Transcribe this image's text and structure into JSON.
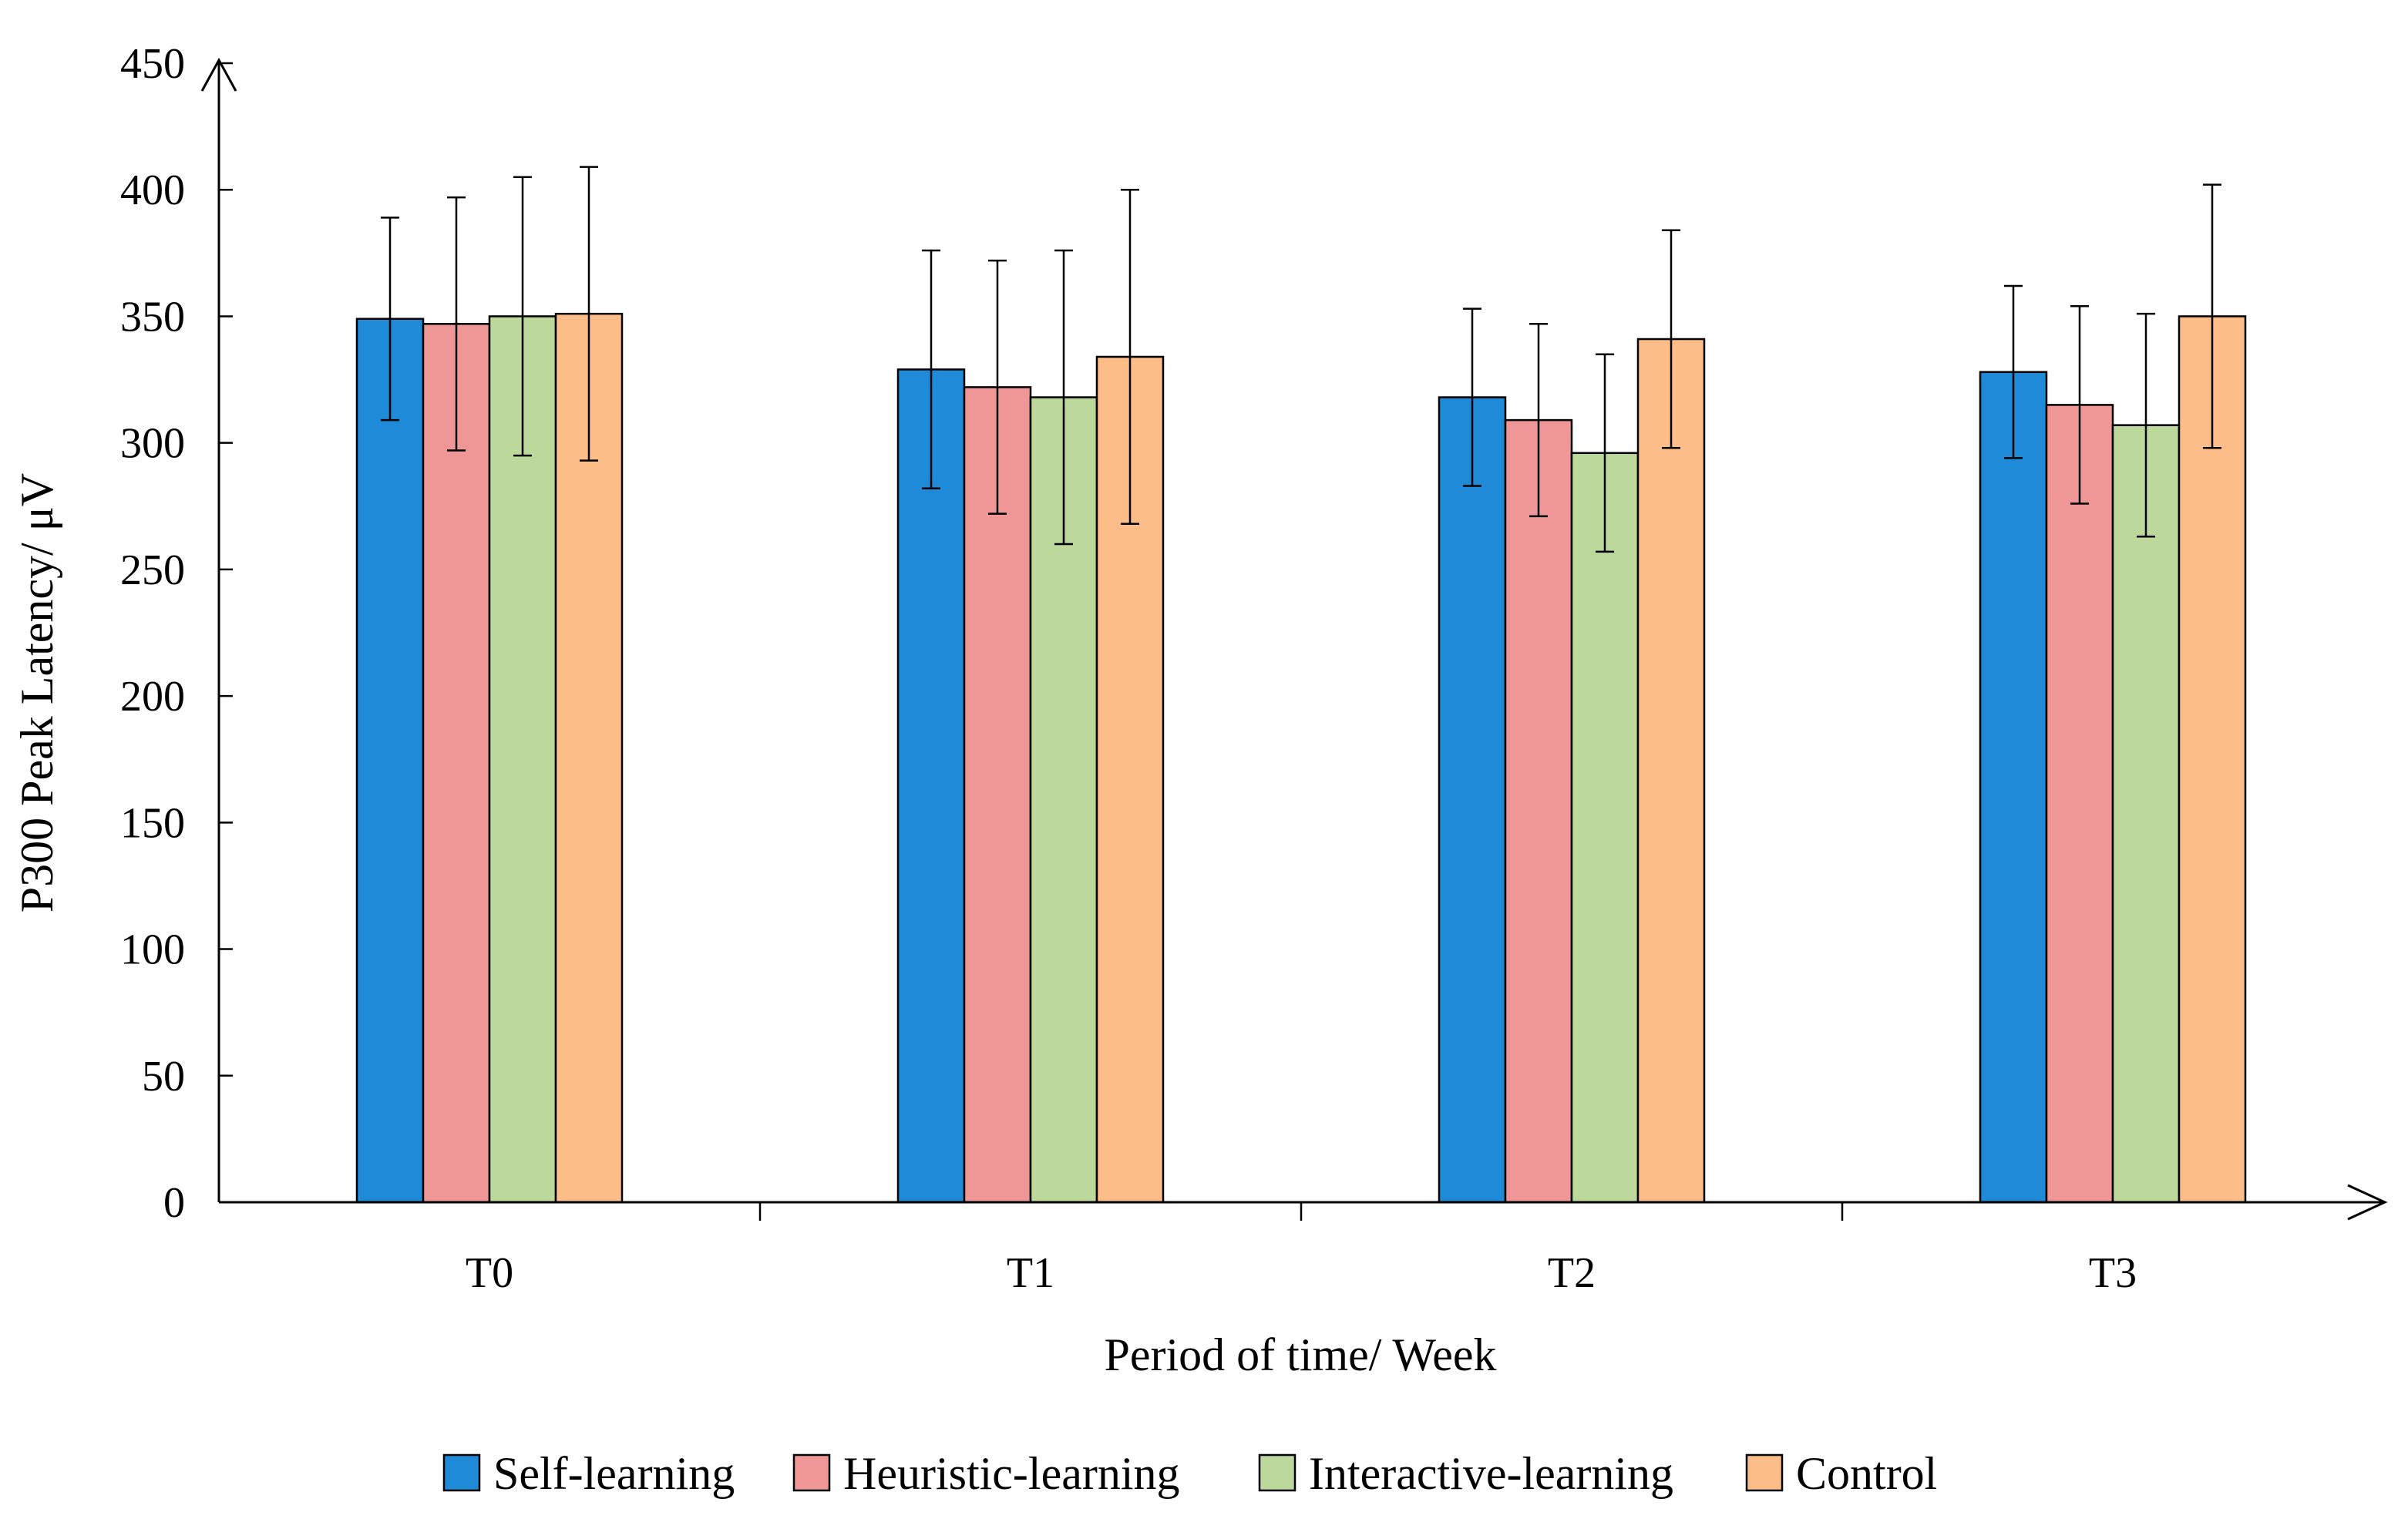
{
  "chart_data": {
    "type": "bar",
    "title": "",
    "xlabel": "Period of time/ Week",
    "ylabel": "P300 Peak Latency/ μV",
    "categories": [
      "T0",
      "T1",
      "T2",
      "T3"
    ],
    "ylim": [
      0,
      450
    ],
    "yticks": [
      0,
      50,
      100,
      150,
      200,
      250,
      300,
      350,
      400,
      450
    ],
    "grid": false,
    "legend_position": "bottom",
    "series": [
      {
        "name": "Self-learning",
        "color": "#1f8bd8",
        "values": [
          349,
          329,
          318,
          328
        ],
        "errors": [
          40,
          47,
          35,
          34
        ]
      },
      {
        "name": "Heuristic-learning",
        "color": "#ef9797",
        "values": [
          347,
          322,
          309,
          315
        ],
        "errors": [
          50,
          50,
          38,
          39
        ]
      },
      {
        "name": "Interactive-learning",
        "color": "#bcd89a",
        "values": [
          350,
          318,
          296,
          307
        ],
        "errors": [
          55,
          58,
          39,
          44
        ]
      },
      {
        "name": "Control",
        "color": "#fdbd88",
        "values": [
          351,
          334,
          341,
          350
        ],
        "errors": [
          58,
          66,
          43,
          52
        ]
      }
    ]
  }
}
